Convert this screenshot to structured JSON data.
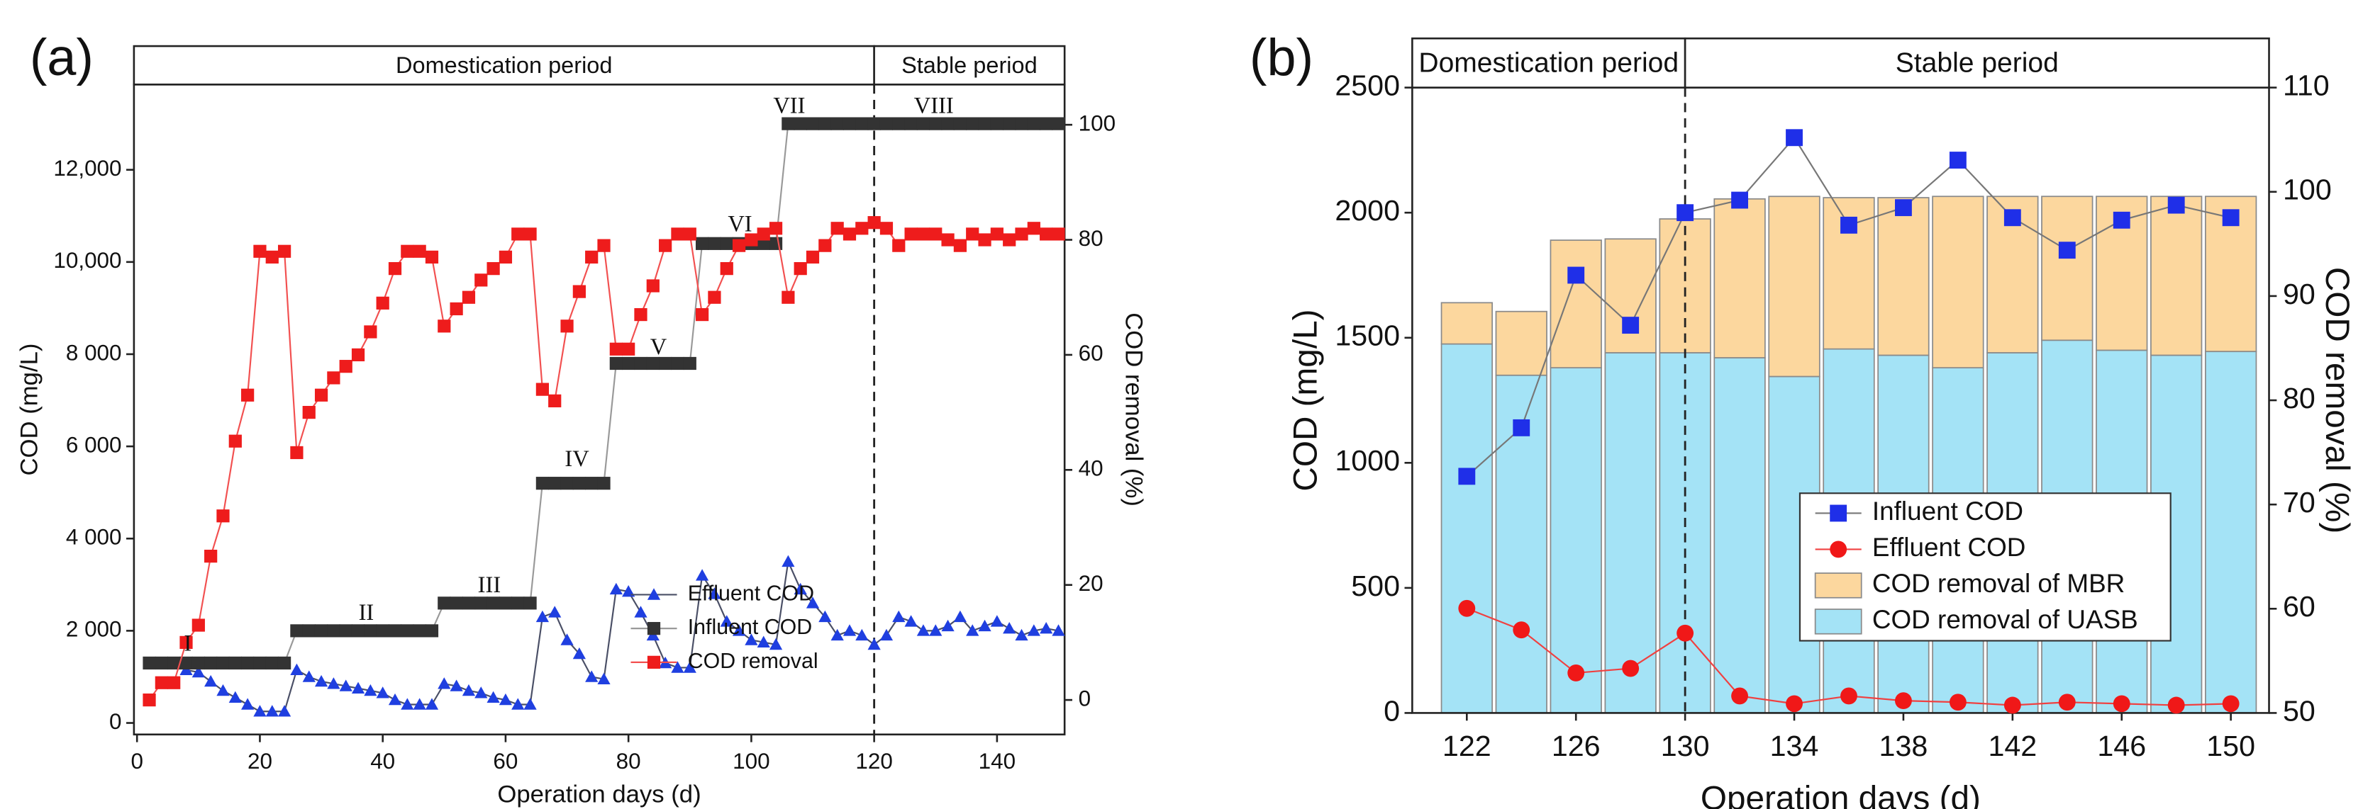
{
  "chart_data": [
    {
      "type": "line",
      "panel_label": "(a)",
      "x_label": "Operation days (d)",
      "y_label": "COD (mg/L)",
      "y2_label": "COD removal (%)",
      "periods": [
        "Domestication period",
        "Stable period"
      ],
      "period_boundary": 120,
      "annotations": [
        "I",
        "II",
        "III",
        "IV",
        "V",
        "VI",
        "VII",
        "VIII"
      ],
      "xlim": [
        -0.5,
        151
      ],
      "xticks": [
        0,
        20,
        40,
        60,
        80,
        100,
        120,
        140
      ],
      "ylim": [
        -250,
        13850
      ],
      "yticks": [
        0,
        {
          "value": 2000,
          "label": "2 000"
        },
        {
          "value": 4000,
          "label": "4 000"
        },
        {
          "value": 6000,
          "label": "6 000"
        },
        {
          "value": 8000,
          "label": "8 000"
        },
        {
          "value": 10000,
          "label": "10,000"
        },
        {
          "value": 12000,
          "label": "12,000"
        }
      ],
      "y2lim": [
        -6,
        107
      ],
      "y2ticks": [
        0,
        20,
        40,
        60,
        80,
        100
      ],
      "x": [
        2,
        4,
        6,
        8,
        10,
        12,
        14,
        16,
        18,
        20,
        22,
        24,
        26,
        28,
        30,
        32,
        34,
        36,
        38,
        40,
        42,
        44,
        46,
        48,
        50,
        52,
        54,
        56,
        58,
        60,
        62,
        64,
        66,
        68,
        70,
        72,
        74,
        76,
        78,
        80,
        82,
        84,
        86,
        88,
        90,
        92,
        94,
        96,
        98,
        100,
        102,
        104,
        106,
        108,
        110,
        112,
        114,
        116,
        118,
        120,
        122,
        124,
        126,
        128,
        130,
        132,
        134,
        136,
        138,
        140,
        142,
        144,
        146,
        148,
        150
      ],
      "series": [
        {
          "name": "Effluent COD",
          "type": "line",
          "marker": "triangle",
          "color": "#1f3fe0",
          "line_color": "#4a4f66",
          "values": [
            null,
            null,
            null,
            1150,
            1100,
            900,
            700,
            550,
            400,
            250,
            250,
            250,
            1150,
            1000,
            900,
            850,
            800,
            750,
            700,
            650,
            500,
            400,
            400,
            400,
            850,
            800,
            700,
            650,
            550,
            500,
            400,
            400,
            2300,
            2400,
            1800,
            1500,
            1000,
            950,
            2900,
            2850,
            2400,
            1900,
            1300,
            1200,
            1200,
            3200,
            2800,
            2200,
            2000,
            1800,
            1750,
            1700,
            3500,
            2900,
            2600,
            2300,
            1900,
            2000,
            1900,
            1700,
            1900,
            2300,
            2200,
            2000,
            2000,
            2100,
            2300,
            2000,
            2100,
            2200,
            2050,
            1900,
            2000,
            2050,
            2000
          ]
        },
        {
          "name": "Influent COD",
          "type": "line",
          "marker": "square",
          "color": "#333333",
          "line_color": "#999999",
          "values": [
            1300,
            1300,
            1300,
            1300,
            1300,
            1300,
            1300,
            1300,
            1300,
            1300,
            1300,
            1300,
            2000,
            2000,
            2000,
            2000,
            2000,
            2000,
            2000,
            2000,
            2000,
            2000,
            2000,
            2000,
            2600,
            2600,
            2600,
            2600,
            2600,
            2600,
            2600,
            2600,
            5200,
            5200,
            5200,
            5200,
            5200,
            5200,
            7800,
            7800,
            7800,
            7800,
            7800,
            7800,
            7800,
            10400,
            10400,
            10400,
            10400,
            10400,
            10400,
            10400,
            13000,
            13000,
            13000,
            13000,
            13000,
            13000,
            13000,
            13000,
            13000,
            13000,
            13000,
            13000,
            13000,
            13000,
            13000,
            13000,
            13000,
            13000,
            13000,
            13000,
            13000,
            13000,
            13000
          ]
        },
        {
          "name": "COD removal",
          "type": "line",
          "marker": "square",
          "axis": "y2",
          "color": "#ee1c1c",
          "line_color": "#f25050",
          "values": [
            0,
            3,
            3,
            10,
            13,
            25,
            32,
            45,
            53,
            78,
            77,
            78,
            43,
            50,
            53,
            56,
            58,
            60,
            64,
            69,
            75,
            78,
            78,
            77,
            65,
            68,
            70,
            73,
            75,
            77,
            81,
            81,
            54,
            52,
            65,
            71,
            77,
            79,
            61,
            61,
            67,
            72,
            79,
            81,
            81,
            67,
            70,
            75,
            79,
            80,
            81,
            82,
            70,
            75,
            77,
            79,
            82,
            81,
            82,
            83,
            82,
            79,
            81,
            81,
            81,
            80,
            79,
            81,
            80,
            81,
            80,
            81,
            82,
            81,
            81
          ]
        }
      ]
    },
    {
      "type": "bar",
      "panel_label": "(b)",
      "x_label": "Operation days (d)",
      "y_label": "COD (mg/L)",
      "y2_label": "COD removal (%)",
      "periods": [
        "Domestication period",
        "Stable period"
      ],
      "period_boundary": 130,
      "xlim": [
        120,
        151.4
      ],
      "xticks": [
        122,
        126,
        130,
        134,
        138,
        142,
        146,
        150
      ],
      "ylim": [
        0,
        2500
      ],
      "yticks": [
        0,
        500,
        1000,
        1500,
        2000,
        2500
      ],
      "y2lim": [
        50,
        110
      ],
      "y2ticks": [
        50,
        60,
        70,
        80,
        90,
        100,
        110
      ],
      "x": [
        122,
        124,
        126,
        128,
        130,
        132,
        134,
        136,
        138,
        140,
        142,
        144,
        146,
        148,
        150
      ],
      "series": [
        {
          "name": "Influent COD",
          "type": "line",
          "marker": "square",
          "color": "#1f2fe8",
          "line_color": "#777777",
          "values": [
            946,
            1140,
            1750,
            1550,
            2000,
            2050,
            2300,
            1950,
            2020,
            2210,
            1980,
            1850,
            1970,
            2030,
            1980
          ]
        },
        {
          "name": "Effluent COD",
          "type": "line",
          "marker": "circle",
          "color": "#f01818",
          "line_color": "#f04040",
          "values": [
            418,
            332,
            160,
            178,
            319,
            68,
            37,
            68,
            49,
            43,
            31,
            43,
            37,
            31,
            37
          ]
        },
        {
          "name": "COD removal of MBR",
          "type": "bar",
          "color": "#fcd79e",
          "values": [
            165,
            255,
            510,
            455,
            535,
            635,
            720,
            605,
            630,
            685,
            625,
            575,
            615,
            635,
            620
          ]
        },
        {
          "name": "COD removal of UASB",
          "type": "bar",
          "color": "#a4e3f6",
          "values": [
            1475,
            1350,
            1380,
            1440,
            1440,
            1420,
            1345,
            1455,
            1430,
            1380,
            1440,
            1490,
            1450,
            1430,
            1445
          ]
        }
      ]
    }
  ]
}
